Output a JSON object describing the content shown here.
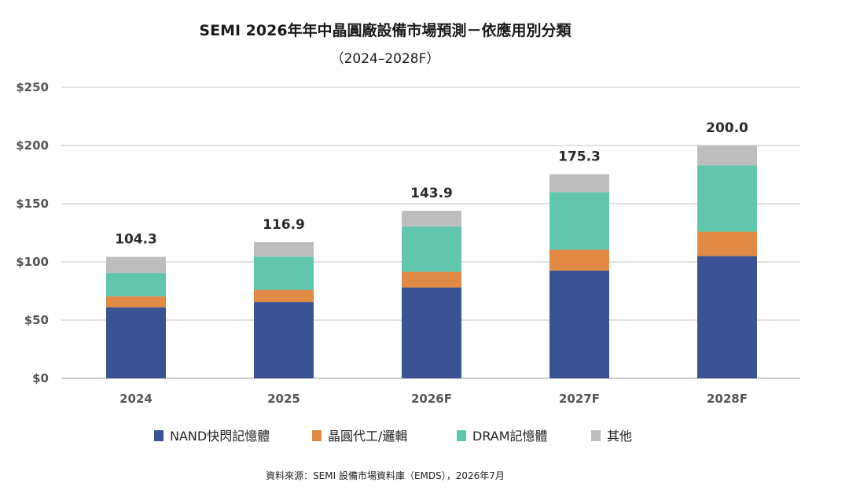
{
  "chart_data": {
    "type": "bar",
    "stacked": true,
    "title": "SEMI 2026年年中晶圓廠設備市場預測－依應用別分類",
    "subtitle": "（2024–2028F）",
    "xlabel": "",
    "ylabel": "",
    "ylim": [
      0,
      250
    ],
    "yticks": [
      0,
      50,
      100,
      150,
      200,
      250
    ],
    "ytick_labels": [
      "$0",
      "$50",
      "$100",
      "$150",
      "$200",
      "$250"
    ],
    "grid": true,
    "legend_position": "bottom",
    "categories": [
      "2024",
      "2025",
      "2026F",
      "2027F",
      "2028F"
    ],
    "totals": [
      "104.3",
      "116.9",
      "143.9",
      "175.3",
      "200.0"
    ],
    "series": [
      {
        "name": "NAND快閃記憶體",
        "color": "#3a5394",
        "values": [
          61.0,
          65.5,
          78.0,
          92.5,
          105.0
        ]
      },
      {
        "name": "晶圓代工/邏輯",
        "color": "#e08a45",
        "values": [
          9.5,
          10.5,
          13.5,
          18.0,
          21.0
        ]
      },
      {
        "name": "DRAM記憶體",
        "color": "#62c6ae",
        "values": [
          20.0,
          28.5,
          39.0,
          49.5,
          57.0
        ]
      },
      {
        "name": "其他",
        "color": "#bdbdbd",
        "values": [
          13.8,
          12.4,
          13.4,
          15.3,
          17.0
        ]
      }
    ],
    "source": "資料來源：SEMI 設備市場資料庫（EMDS），2026年7月"
  }
}
